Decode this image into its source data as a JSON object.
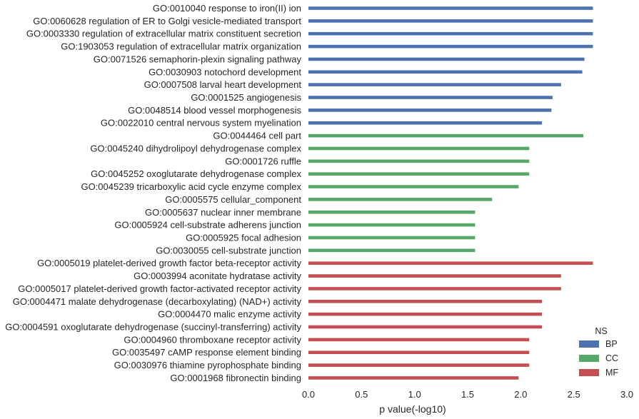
{
  "chart_data": {
    "type": "bar",
    "orientation": "horizontal",
    "xlabel": "p value(-log10)",
    "ylabel": "",
    "xlim": [
      0,
      3.0
    ],
    "xticks": [
      "0.0",
      "0.5",
      "1.0",
      "1.5",
      "2.0",
      "2.5",
      "3.0"
    ],
    "grid": false,
    "legend": {
      "title": "NS",
      "placement": "bottom-right",
      "entries": [
        {
          "name": "BP",
          "color": "#4c72b0"
        },
        {
          "name": "CC",
          "color": "#55a868"
        },
        {
          "name": "MF",
          "color": "#c44e52"
        }
      ]
    },
    "categories": [
      "GO:0010040 response to iron(II) ion",
      "GO:0060628 regulation of ER to Golgi vesicle-mediated transport",
      "GO:0003330 regulation of extracellular matrix constituent secretion",
      "GO:1903053 regulation of extracellular matrix organization",
      "GO:0071526 semaphorin-plexin signaling pathway",
      "GO:0030903 notochord development",
      "GO:0007508 larval heart development",
      "GO:0001525 angiogenesis",
      "GO:0048514 blood vessel morphogenesis",
      "GO:0022010 central nervous system myelination",
      "GO:0044464 cell part",
      "GO:0045240 dihydrolipoyl dehydrogenase complex",
      "GO:0001726 ruffle",
      "GO:0045252 oxoglutarate dehydrogenase complex",
      "GO:0045239 tricarboxylic acid cycle enzyme complex",
      "GO:0005575 cellular_component",
      "GO:0005637 nuclear inner membrane",
      "GO:0005924 cell-substrate adherens junction",
      "GO:0005925 focal adhesion",
      "GO:0030055 cell-substrate junction",
      "GO:0005019 platelet-derived growth factor beta-receptor activity",
      "GO:0003994 aconitate hydratase activity",
      "GO:0005017 platelet-derived growth factor-activated receptor activity",
      "GO:0004471 malate dehydrogenase (decarboxylating) (NAD+) activity",
      "GO:0004470 malic enzyme activity",
      "GO:0004591 oxoglutarate dehydrogenase (succinyl-transferring) activity",
      "GO:0004960 thromboxane receptor activity",
      "GO:0035497 cAMP response element binding",
      "GO:0030976 thiamine pyrophosphate binding",
      "GO:0001968 fibronectin binding"
    ],
    "values": [
      2.68,
      2.68,
      2.68,
      2.68,
      2.6,
      2.58,
      2.38,
      2.3,
      2.29,
      2.2,
      2.59,
      2.08,
      2.08,
      2.08,
      1.98,
      1.73,
      1.57,
      1.57,
      1.57,
      1.57,
      2.68,
      2.38,
      2.38,
      2.2,
      2.2,
      2.2,
      2.08,
      2.08,
      2.08,
      1.98
    ],
    "groups": [
      "BP",
      "BP",
      "BP",
      "BP",
      "BP",
      "BP",
      "BP",
      "BP",
      "BP",
      "BP",
      "CC",
      "CC",
      "CC",
      "CC",
      "CC",
      "CC",
      "CC",
      "CC",
      "CC",
      "CC",
      "MF",
      "MF",
      "MF",
      "MF",
      "MF",
      "MF",
      "MF",
      "MF",
      "MF",
      "MF"
    ]
  }
}
